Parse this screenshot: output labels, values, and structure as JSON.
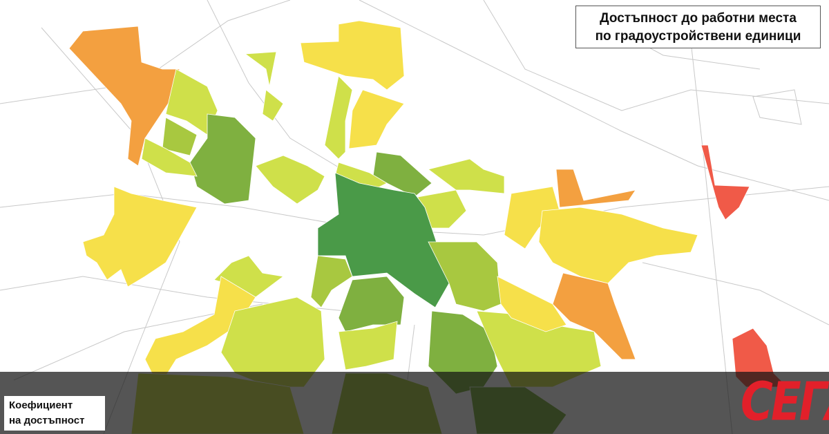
{
  "header": {
    "title_lines": [
      "Достъпност до работни места",
      "по градоустройствени единици"
    ]
  },
  "legend": {
    "title_lines": [
      "Коефициент",
      "на достъпност"
    ]
  },
  "logo": "СЕГА"
}
